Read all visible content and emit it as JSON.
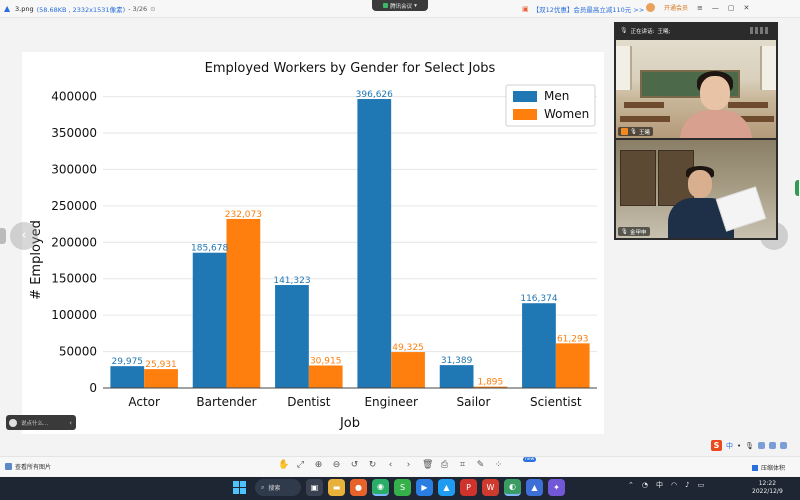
{
  "titlebar": {
    "filename": "3.png",
    "file_meta": "(58.68KB , 2332x1531像素)",
    "page_indicator": "- 3/26",
    "meeting_pill": "腾讯会议",
    "promo_text": "【双12优惠】会员最高立减110元 >>",
    "vip_text": "开通会员",
    "window_controls": [
      "minimize-icon",
      "maximize-icon",
      "close-icon"
    ]
  },
  "meeting": {
    "speaking_label": "正在讲话:",
    "speaking_name": "王曦;",
    "participants": [
      {
        "name": "王曦"
      },
      {
        "name": "金甲申"
      }
    ]
  },
  "chart_data": {
    "type": "bar",
    "title": "Employed Workers by Gender for Select Jobs",
    "xlabel": "Job",
    "ylabel": "# Employed",
    "categories": [
      "Actor",
      "Bartender",
      "Dentist",
      "Engineer",
      "Sailor",
      "Scientist"
    ],
    "series": [
      {
        "name": "Men",
        "color": "#1f77b4",
        "values": [
          29975,
          185678,
          141323,
          396626,
          31389,
          116374
        ],
        "labels": [
          "29,975",
          "185,678",
          "141,323",
          "396,626",
          "31,389",
          "116,374"
        ]
      },
      {
        "name": "Women",
        "color": "#ff7f0e",
        "values": [
          25931,
          232073,
          30915,
          49325,
          1895,
          61293
        ],
        "labels": [
          "25,931",
          "232,073",
          "30,915",
          "49,325",
          "1,895",
          "61,293"
        ]
      }
    ],
    "ylim": [
      0,
      420000
    ],
    "yticks": [
      0,
      50000,
      100000,
      150000,
      200000,
      250000,
      300000,
      350000,
      400000
    ],
    "grid": "horizontal",
    "legend_position": "top-right"
  },
  "input_pill": {
    "placeholder": "说点什么..."
  },
  "ime": {
    "logo": "S",
    "mode": "中"
  },
  "toolbar": {
    "view_all": "查看所有图片",
    "new_badge": "new",
    "compress": "压缩体积"
  },
  "taskbar": {
    "search": "搜索",
    "tray_lang": "中",
    "time": "12:22",
    "date": "2022/12/9"
  }
}
